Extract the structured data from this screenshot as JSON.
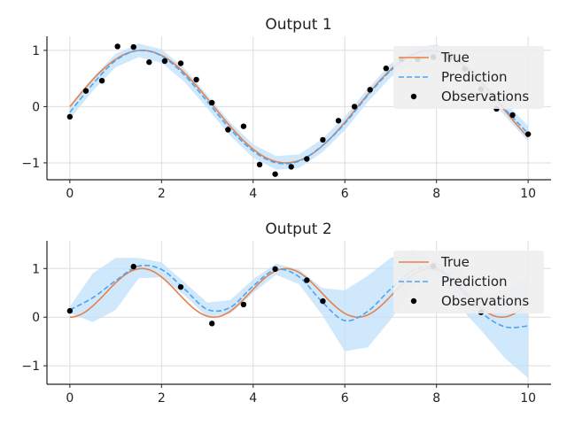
{
  "colors": {
    "true_line": "#e8804a",
    "prediction_line": "#4da3f2",
    "band_fill": "#bfe0fb",
    "observation": "#000000",
    "legend_bg": "#eeeeee"
  },
  "legend": {
    "true_label": "True",
    "prediction_label": "Prediction",
    "observations_label": "Observations",
    "placement": "top-right"
  },
  "chart_data": [
    {
      "type": "line",
      "title": "Output 1",
      "xlabel": "",
      "ylabel": "",
      "xlim": [
        -0.5,
        10.5
      ],
      "ylim": [
        -1.3,
        1.25
      ],
      "grid": true,
      "x_ticks": [
        0,
        2,
        4,
        6,
        8,
        10
      ],
      "x_tick_labels": [
        "0",
        "2",
        "4",
        "6",
        "8",
        "10"
      ],
      "y_ticks": [
        -1,
        0,
        1
      ],
      "y_tick_labels": [
        "−1",
        "0",
        "1"
      ],
      "true_function": {
        "amplitude": 1.0,
        "frequency": 1.0,
        "phase": 0.0,
        "offset": 0.0
      },
      "prediction": {
        "x": [
          0,
          0.5,
          1,
          1.5,
          2,
          2.5,
          3,
          3.5,
          4,
          4.5,
          5,
          5.5,
          6,
          6.5,
          7,
          7.5,
          8,
          8.5,
          9,
          9.5,
          10
        ],
        "mean": [
          -0.1,
          0.4,
          0.82,
          1.0,
          0.9,
          0.56,
          0.09,
          -0.4,
          -0.79,
          -1.0,
          -0.97,
          -0.7,
          -0.3,
          0.2,
          0.64,
          0.93,
          0.98,
          0.78,
          0.4,
          -0.05,
          -0.48
        ],
        "lower": [
          -0.22,
          0.28,
          0.7,
          0.88,
          0.78,
          0.44,
          -0.03,
          -0.52,
          -0.91,
          -1.12,
          -1.09,
          -0.82,
          -0.42,
          0.08,
          0.52,
          0.81,
          0.86,
          0.66,
          0.28,
          -0.17,
          -0.62
        ],
        "upper": [
          0.02,
          0.52,
          0.94,
          1.12,
          1.02,
          0.68,
          0.21,
          -0.28,
          -0.67,
          -0.88,
          -0.85,
          -0.58,
          -0.18,
          0.32,
          0.76,
          1.05,
          1.1,
          0.9,
          0.52,
          0.07,
          -0.34
        ]
      },
      "observations": {
        "x": [
          0,
          0.35,
          0.7,
          1.04,
          1.39,
          1.73,
          2.07,
          2.42,
          2.76,
          3.1,
          3.45,
          3.79,
          4.14,
          4.48,
          4.83,
          5.17,
          5.52,
          5.86,
          6.21,
          6.55,
          6.9,
          7.24,
          7.59,
          7.93,
          8.28,
          8.62,
          8.97,
          9.31,
          9.66,
          10
        ],
        "y": [
          -0.18,
          0.28,
          0.46,
          1.07,
          1.06,
          0.79,
          0.81,
          0.77,
          0.48,
          0.07,
          -0.41,
          -0.35,
          -1.03,
          -1.2,
          -1.07,
          -0.93,
          -0.59,
          -0.25,
          0.0,
          0.3,
          0.68,
          0.84,
          0.84,
          0.88,
          0.86,
          0.67,
          0.31,
          -0.04,
          -0.15,
          -0.49
        ]
      }
    },
    {
      "type": "line",
      "title": "Output 2",
      "xlabel": "",
      "ylabel": "",
      "xlim": [
        -0.5,
        10.5
      ],
      "ylim": [
        -1.38,
        1.57
      ],
      "grid": true,
      "x_ticks": [
        0,
        2,
        4,
        6,
        8,
        10
      ],
      "x_tick_labels": [
        "0",
        "2",
        "4",
        "6",
        "8",
        "10"
      ],
      "y_ticks": [
        -1,
        0,
        1
      ],
      "y_tick_labels": [
        "−1",
        "0",
        "1"
      ],
      "true_function": {
        "type": "sin_squared",
        "frequency": 1.0
      },
      "prediction": {
        "x": [
          0,
          0.5,
          1,
          1.5,
          2,
          2.5,
          3,
          3.5,
          4,
          4.5,
          5,
          5.5,
          6,
          6.5,
          7,
          7.5,
          8,
          8.5,
          9,
          9.5,
          10
        ],
        "mean": [
          0.15,
          0.4,
          0.75,
          1.05,
          0.98,
          0.58,
          0.16,
          0.2,
          0.64,
          0.98,
          0.83,
          0.32,
          -0.07,
          0.12,
          0.58,
          0.96,
          1.02,
          0.6,
          0.08,
          -0.2,
          -0.18
        ],
        "lower": [
          0.08,
          -0.1,
          0.15,
          0.8,
          0.82,
          0.45,
          0.0,
          0.07,
          0.5,
          0.87,
          0.68,
          0.05,
          -0.7,
          -0.62,
          -0.05,
          0.62,
          0.9,
          0.22,
          -0.3,
          -0.85,
          -1.25
        ],
        "upper": [
          0.22,
          0.9,
          1.22,
          1.22,
          1.13,
          0.72,
          0.3,
          0.35,
          0.78,
          1.1,
          0.98,
          0.6,
          0.55,
          0.85,
          1.22,
          1.38,
          1.12,
          1.0,
          0.45,
          0.55,
          0.82
        ]
      },
      "observations": {
        "x": [
          0,
          1.39,
          2.42,
          3.1,
          3.79,
          4.48,
          5.17,
          5.52,
          7.93,
          8.97
        ],
        "y": [
          0.13,
          1.04,
          0.62,
          -0.13,
          0.26,
          0.99,
          0.76,
          0.33,
          1.05,
          0.1
        ]
      }
    }
  ]
}
